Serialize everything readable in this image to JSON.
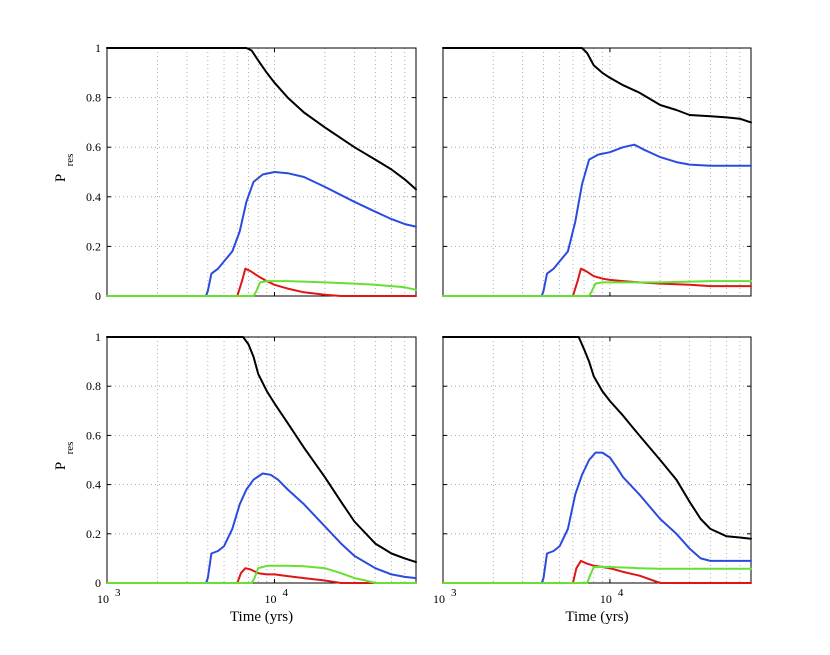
{
  "chart_data": [
    {
      "type": "line",
      "panel": "top-left",
      "xscale": "log",
      "xlim": [
        1000,
        70000
      ],
      "ylim": [
        0,
        1
      ],
      "yticks": [
        "0",
        "0.2",
        "0.4",
        "0.6",
        "0.8",
        "1"
      ],
      "xticks": [],
      "ylabel_main": "P",
      "ylabel_sub": "res",
      "xlabel": "",
      "grid": true,
      "series": [
        {
          "name": "black",
          "color": "#000000",
          "x": [
            1000,
            5000,
            6800,
            7300,
            8000,
            9000,
            10000,
            12000,
            15000,
            20000,
            30000,
            40000,
            50000,
            60000,
            70000
          ],
          "y": [
            1,
            1,
            1,
            0.99,
            0.95,
            0.9,
            0.86,
            0.8,
            0.74,
            0.68,
            0.6,
            0.55,
            0.51,
            0.47,
            0.43
          ]
        },
        {
          "name": "blue",
          "color": "#2b4be0",
          "x": [
            1000,
            3900,
            4000,
            4200,
            4600,
            5000,
            5600,
            6200,
            6800,
            7500,
            8500,
            10000,
            12000,
            15000,
            20000,
            30000,
            40000,
            50000,
            60000,
            70000
          ],
          "y": [
            0,
            0,
            0.02,
            0.09,
            0.11,
            0.14,
            0.18,
            0.26,
            0.38,
            0.46,
            0.49,
            0.5,
            0.495,
            0.48,
            0.44,
            0.38,
            0.34,
            0.31,
            0.29,
            0.28
          ]
        },
        {
          "name": "red",
          "color": "#e01515",
          "x": [
            1000,
            6000,
            6400,
            6700,
            7200,
            8000,
            9000,
            10000,
            12000,
            15000,
            20000,
            25000,
            70000
          ],
          "y": [
            0,
            0,
            0.06,
            0.11,
            0.1,
            0.08,
            0.06,
            0.045,
            0.03,
            0.015,
            0.005,
            0,
            0
          ]
        },
        {
          "name": "green",
          "color": "#66e033",
          "x": [
            1000,
            7500,
            7800,
            8200,
            9000,
            10000,
            12000,
            15000,
            20000,
            30000,
            40000,
            50000,
            60000,
            70000
          ],
          "y": [
            0,
            0,
            0.02,
            0.055,
            0.06,
            0.06,
            0.06,
            0.058,
            0.055,
            0.05,
            0.045,
            0.04,
            0.035,
            0.025
          ]
        }
      ]
    },
    {
      "type": "line",
      "panel": "top-right",
      "xscale": "log",
      "xlim": [
        1000,
        70000
      ],
      "ylim": [
        0,
        1
      ],
      "yticks": [],
      "xticks": [],
      "xlabel": "",
      "grid": true,
      "series": [
        {
          "name": "black",
          "color": "#000000",
          "x": [
            1000,
            5000,
            6800,
            7300,
            8000,
            9000,
            10000,
            12000,
            15000,
            20000,
            25000,
            30000,
            40000,
            50000,
            60000,
            70000
          ],
          "y": [
            1,
            1,
            1,
            0.98,
            0.93,
            0.9,
            0.88,
            0.85,
            0.82,
            0.77,
            0.75,
            0.73,
            0.725,
            0.72,
            0.715,
            0.7
          ]
        },
        {
          "name": "blue",
          "color": "#2b4be0",
          "x": [
            1000,
            3900,
            4000,
            4200,
            4600,
            5000,
            5600,
            6200,
            6800,
            7500,
            8500,
            10000,
            12000,
            14000,
            16000,
            20000,
            25000,
            30000,
            40000,
            70000
          ],
          "y": [
            0,
            0,
            0.02,
            0.09,
            0.11,
            0.14,
            0.18,
            0.3,
            0.45,
            0.55,
            0.57,
            0.58,
            0.6,
            0.61,
            0.59,
            0.56,
            0.54,
            0.53,
            0.525,
            0.525
          ]
        },
        {
          "name": "red",
          "color": "#e01515",
          "x": [
            1000,
            6000,
            6400,
            6700,
            7200,
            8000,
            9000,
            10000,
            12000,
            15000,
            20000,
            30000,
            40000,
            70000
          ],
          "y": [
            0,
            0,
            0.06,
            0.11,
            0.1,
            0.08,
            0.07,
            0.065,
            0.06,
            0.055,
            0.05,
            0.045,
            0.04,
            0.04
          ]
        },
        {
          "name": "green",
          "color": "#66e033",
          "x": [
            1000,
            7500,
            7800,
            8200,
            9000,
            10000,
            12000,
            15000,
            20000,
            30000,
            40000,
            70000
          ],
          "y": [
            0,
            0,
            0.02,
            0.05,
            0.055,
            0.055,
            0.055,
            0.055,
            0.055,
            0.058,
            0.06,
            0.06
          ]
        }
      ]
    },
    {
      "type": "line",
      "panel": "bottom-left",
      "xscale": "log",
      "xlim": [
        1000,
        70000
      ],
      "ylim": [
        0,
        1
      ],
      "yticks": [
        "0",
        "0.2",
        "0.4",
        "0.6",
        "0.8",
        "1"
      ],
      "xticks": [
        {
          "base": "10",
          "exp": "3",
          "value": 1000
        },
        {
          "base": "10",
          "exp": "4",
          "value": 10000
        }
      ],
      "ylabel_main": "P",
      "ylabel_sub": "res",
      "xlabel": "Time (yrs)",
      "grid": true,
      "series": [
        {
          "name": "black",
          "color": "#000000",
          "x": [
            1000,
            5000,
            6500,
            7000,
            7500,
            8000,
            9000,
            10000,
            12000,
            15000,
            20000,
            25000,
            30000,
            40000,
            50000,
            60000,
            70000
          ],
          "y": [
            1,
            1,
            1,
            0.97,
            0.92,
            0.85,
            0.78,
            0.73,
            0.65,
            0.55,
            0.43,
            0.33,
            0.25,
            0.16,
            0.12,
            0.1,
            0.085
          ]
        },
        {
          "name": "blue",
          "color": "#2b4be0",
          "x": [
            1000,
            3900,
            4000,
            4200,
            4600,
            5000,
            5600,
            6200,
            6800,
            7500,
            8500,
            9500,
            10500,
            12000,
            15000,
            20000,
            25000,
            30000,
            40000,
            50000,
            60000,
            70000
          ],
          "y": [
            0,
            0,
            0.02,
            0.12,
            0.13,
            0.15,
            0.22,
            0.32,
            0.38,
            0.42,
            0.445,
            0.44,
            0.42,
            0.38,
            0.32,
            0.23,
            0.16,
            0.11,
            0.06,
            0.035,
            0.025,
            0.02
          ]
        },
        {
          "name": "red",
          "color": "#e01515",
          "x": [
            1000,
            6000,
            6300,
            6700,
            7200,
            8000,
            9000,
            10000,
            12000,
            15000,
            20000,
            25000,
            70000
          ],
          "y": [
            0,
            0,
            0.04,
            0.06,
            0.055,
            0.04,
            0.035,
            0.035,
            0.028,
            0.02,
            0.01,
            0,
            0
          ]
        },
        {
          "name": "green",
          "color": "#66e033",
          "x": [
            1000,
            7300,
            7600,
            8000,
            8500,
            9000,
            10000,
            12000,
            15000,
            20000,
            25000,
            30000,
            35000,
            40000,
            70000
          ],
          "y": [
            0,
            0,
            0.02,
            0.06,
            0.065,
            0.07,
            0.07,
            0.07,
            0.068,
            0.06,
            0.04,
            0.02,
            0.01,
            0,
            0
          ]
        }
      ]
    },
    {
      "type": "line",
      "panel": "bottom-right",
      "xscale": "log",
      "xlim": [
        1000,
        70000
      ],
      "ylim": [
        0,
        1
      ],
      "yticks": [],
      "xticks": [
        {
          "base": "10",
          "exp": "3",
          "value": 1000
        },
        {
          "base": "10",
          "exp": "4",
          "value": 10000
        }
      ],
      "xlabel": "Time (yrs)",
      "grid": true,
      "series": [
        {
          "name": "black",
          "color": "#000000",
          "x": [
            1000,
            5000,
            6500,
            7000,
            7500,
            8000,
            9000,
            10000,
            12000,
            15000,
            20000,
            25000,
            30000,
            35000,
            40000,
            50000,
            60000,
            70000
          ],
          "y": [
            1,
            1,
            1,
            0.95,
            0.9,
            0.84,
            0.78,
            0.74,
            0.68,
            0.6,
            0.5,
            0.42,
            0.33,
            0.26,
            0.22,
            0.19,
            0.185,
            0.18
          ]
        },
        {
          "name": "blue",
          "color": "#2b4be0",
          "x": [
            1000,
            3900,
            4000,
            4200,
            4600,
            5000,
            5600,
            6200,
            6800,
            7500,
            8200,
            9000,
            10000,
            11000,
            12000,
            15000,
            20000,
            25000,
            30000,
            35000,
            40000,
            50000,
            60000,
            70000
          ],
          "y": [
            0,
            0,
            0.02,
            0.12,
            0.13,
            0.15,
            0.22,
            0.36,
            0.44,
            0.5,
            0.53,
            0.53,
            0.51,
            0.47,
            0.43,
            0.36,
            0.26,
            0.2,
            0.14,
            0.1,
            0.09,
            0.09,
            0.09,
            0.09
          ]
        },
        {
          "name": "red",
          "color": "#e01515",
          "x": [
            1000,
            6000,
            6300,
            6700,
            7200,
            8000,
            9000,
            10000,
            12000,
            15000,
            20000,
            70000
          ],
          "y": [
            0,
            0,
            0.06,
            0.09,
            0.08,
            0.07,
            0.065,
            0.06,
            0.045,
            0.03,
            0,
            0
          ]
        },
        {
          "name": "green",
          "color": "#66e033",
          "x": [
            1000,
            7300,
            7600,
            8000,
            9000,
            10000,
            12000,
            15000,
            20000,
            30000,
            40000,
            70000
          ],
          "y": [
            0,
            0,
            0.03,
            0.065,
            0.065,
            0.065,
            0.063,
            0.06,
            0.058,
            0.058,
            0.058,
            0.058
          ]
        }
      ]
    }
  ]
}
